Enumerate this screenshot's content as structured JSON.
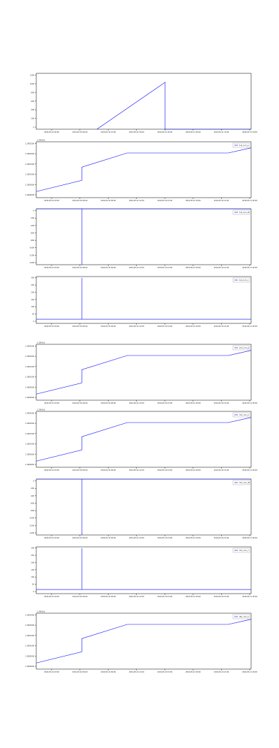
{
  "chart_data": [
    {
      "type": "line",
      "title": "",
      "xlabel": "",
      "ylabel": "",
      "x_ticks": [
        "2019-05-10 00:00",
        "2019-05-10 06:00",
        "2019-05-10 12:00",
        "2019-05-10 18:00",
        "2019-05-11 00:00",
        "2019-05-11 06:00",
        "2019-05-11 12:00",
        "2019-05-11 18:00"
      ],
      "y_ticks": [
        "0",
        "200",
        "400",
        "600",
        "800",
        "1000",
        "1200"
      ],
      "xlim": [
        0,
        8.5
      ],
      "ylim": [
        0,
        1250
      ],
      "offset_text": "",
      "grid": false,
      "legend": null,
      "color": "#0000ff",
      "series": [
        {
          "x": [
            2.4,
            5.1,
            5.1,
            8.5
          ],
          "y": [
            0,
            1050,
            0,
            0
          ]
        }
      ]
    },
    {
      "type": "line",
      "title": "",
      "xlabel": "",
      "ylabel": "",
      "x_ticks": [
        "2019-05-10 03:00",
        "2019-05-10 06:00",
        "2019-05-10 09:00",
        "2019-05-10 12:00",
        "2019-05-10 15:00",
        "2019-05-10 18:00",
        "2019-05-10 21:00",
        "2019-05-11 00:00"
      ],
      "y_ticks": [
        "1.2900000",
        "1.2900500",
        "1.2901000",
        "1.2901500",
        "1.2902000",
        "1.2902500"
      ],
      "xlim": [
        0,
        8.5
      ],
      "ylim": [
        0,
        5.5
      ],
      "offset_text": "1.2901e5",
      "grid": false,
      "legend": "top-right",
      "legend_label": "1st_cum_p",
      "color": "#0000ff",
      "series": [
        {
          "x": [
            0,
            1.8,
            1.8,
            3.6,
            7.6,
            8.5
          ],
          "y": [
            0.6,
            1.7,
            3.0,
            4.4,
            4.4,
            4.9
          ]
        }
      ]
    },
    {
      "type": "line",
      "title": "",
      "xlabel": "",
      "ylabel": "",
      "x_ticks": [
        "2019-05-10 03:00",
        "2019-05-10 06:00",
        "2019-05-10 09:00",
        "2019-05-10 12:00",
        "2019-05-10 15:00",
        "2019-05-10 18:00",
        "2019-05-10 21:00",
        "2019-05-11 00:00"
      ],
      "y_ticks": [
        "-1400",
        "-1200",
        "-1000",
        "-800",
        "-600",
        "-400",
        "-200",
        "0"
      ],
      "xlim": [
        0,
        8.5
      ],
      "ylim": [
        -1400,
        0
      ],
      "offset_text": "",
      "grid": false,
      "legend": "top-right",
      "legend_label": "1st_cum_dt",
      "color": "#0000ff",
      "series": [
        {
          "x": [
            0,
            1.8,
            1.8,
            1.8,
            8.5
          ],
          "y": [
            0,
            0,
            -1400,
            0,
            0
          ]
        }
      ]
    },
    {
      "type": "line",
      "title": "",
      "xlabel": "",
      "ylabel": "",
      "x_ticks": [
        "2019-05-10 03:00",
        "2019-05-10 06:00",
        "2019-05-10 09:00",
        "2019-05-10 12:00",
        "2019-05-10 15:00",
        "2019-05-10 18:00",
        "2019-05-10 21:00",
        "2019-05-11 00:00"
      ],
      "y_ticks": [
        "0",
        "50",
        "100",
        "150",
        "200",
        "250",
        "300"
      ],
      "xlim": [
        0,
        8.5
      ],
      "ylim": [
        -30,
        310
      ],
      "offset_text": "",
      "grid": false,
      "legend": "top-right",
      "legend_label": "1st_cum_v",
      "color": "#0000ff",
      "series": [
        {
          "x": [
            0,
            1.8,
            1.8,
            1.8,
            8.5
          ],
          "y": [
            0,
            0,
            300,
            0,
            0
          ]
        }
      ]
    },
    {
      "type": "line",
      "title": "",
      "xlabel": "",
      "ylabel": "",
      "x_ticks": [
        "2019-05-10 03:00",
        "2019-05-10 06:00",
        "2019-05-10 09:00",
        "2019-05-10 12:00",
        "2019-05-10 15:00",
        "2019-05-10 18:00",
        "2019-05-10 21:00",
        "2019-05-11 00:00"
      ],
      "y_ticks": [
        "1.2900000",
        "1.2900500",
        "1.2901000",
        "1.2901500",
        "1.2902000",
        "1.2902500"
      ],
      "xlim": [
        0,
        8.5
      ],
      "ylim": [
        0,
        5.5
      ],
      "offset_text": "1.2901e5",
      "grid": false,
      "legend": "top-right",
      "legend_label": "2nd_cum_p",
      "color": "#0000ff",
      "series": [
        {
          "x": [
            0,
            1.8,
            1.8,
            3.6,
            7.6,
            8.5
          ],
          "y": [
            0.6,
            1.7,
            3.0,
            4.4,
            4.4,
            4.9
          ]
        }
      ]
    },
    {
      "type": "line",
      "title": "",
      "xlabel": "",
      "ylabel": "",
      "x_ticks": [
        "2019-05-10 03:00",
        "2019-05-10 06:00",
        "2019-05-10 09:00",
        "2019-05-10 12:00",
        "2019-05-10 15:00",
        "2019-05-10 18:00",
        "2019-05-10 21:00",
        "2019-05-11 00:00"
      ],
      "y_ticks": [
        "1.2900000",
        "1.2900500",
        "1.2901000",
        "1.2901500",
        "1.2902000",
        "1.2902500"
      ],
      "xlim": [
        0,
        8.5
      ],
      "ylim": [
        0,
        5.5
      ],
      "offset_text": "1.2901e5",
      "grid": false,
      "legend": "top-right",
      "legend_label": "3rd_cum_p",
      "color": "#0000ff",
      "series": [
        {
          "x": [
            0,
            1.8,
            1.8,
            3.6,
            7.6,
            8.5
          ],
          "y": [
            0.6,
            1.7,
            3.0,
            4.4,
            4.4,
            4.9
          ]
        }
      ]
    },
    {
      "type": "line",
      "title": "",
      "xlabel": "",
      "ylabel": "",
      "x_ticks": [
        "2019-05-10 03:00",
        "2019-05-10 06:00",
        "2019-05-10 09:00",
        "2019-05-10 12:00",
        "2019-05-10 15:00",
        "2019-05-10 18:00",
        "2019-05-10 21:00",
        "2019-05-11 00:00"
      ],
      "y_ticks": [
        "-1400",
        "-1200",
        "-1000",
        "-800",
        "-600",
        "-400",
        "-200",
        "0"
      ],
      "xlim": [
        0,
        8.5
      ],
      "ylim": [
        -1400,
        0
      ],
      "offset_text": "",
      "grid": false,
      "legend": "top-right",
      "legend_label": "3rd_cum_dt",
      "color": "#0000ff",
      "series": [
        {
          "x": [
            0,
            1.8,
            1.8,
            1.8,
            8.5
          ],
          "y": [
            0,
            0,
            -1400,
            0,
            0
          ]
        }
      ]
    },
    {
      "type": "line",
      "title": "",
      "xlabel": "",
      "ylabel": "",
      "x_ticks": [
        "2019-05-10 03:00",
        "2019-05-10 06:00",
        "2019-05-10 09:00",
        "2019-05-10 12:00",
        "2019-05-10 15:00",
        "2019-05-10 18:00",
        "2019-05-10 21:00",
        "2019-05-11 00:00"
      ],
      "y_ticks": [
        "0",
        "50",
        "100",
        "150",
        "200",
        "250",
        "300"
      ],
      "xlim": [
        0,
        8.5
      ],
      "ylim": [
        -30,
        310
      ],
      "offset_text": "",
      "grid": false,
      "legend": "top-right",
      "legend_label": "3rd_cum_v",
      "color": "#0000ff",
      "series": [
        {
          "x": [
            0,
            1.8,
            1.8,
            1.8,
            8.5
          ],
          "y": [
            0,
            0,
            300,
            0,
            0
          ]
        }
      ]
    },
    {
      "type": "line",
      "title": "",
      "xlabel": "",
      "ylabel": "",
      "x_ticks": [
        "2019-05-10 03:00",
        "2019-05-10 06:00",
        "2019-05-10 09:00",
        "2019-05-10 12:00",
        "2019-05-10 15:00",
        "2019-05-10 18:00",
        "2019-05-10 21:00",
        "2019-05-11 00:00"
      ],
      "y_ticks": [
        "1.2900000",
        "1.2900500",
        "1.2901000",
        "1.2901500",
        "1.2902000",
        "1.2902500"
      ],
      "xlim": [
        0,
        8.5
      ],
      "ylim": [
        0,
        5.5
      ],
      "offset_text": "1.2901e5",
      "grid": false,
      "legend": "top-right",
      "legend_label": "4th_cum_p",
      "color": "#0000ff",
      "series": [
        {
          "x": [
            0,
            1.8,
            1.8,
            3.6,
            7.6,
            8.5
          ],
          "y": [
            0.6,
            1.7,
            3.0,
            4.4,
            4.4,
            4.9
          ]
        }
      ]
    }
  ]
}
